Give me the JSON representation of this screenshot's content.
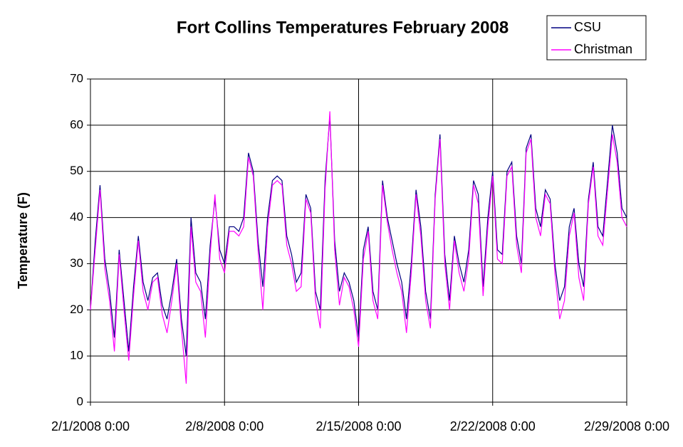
{
  "chart_data": {
    "type": "line",
    "title": "Fort Collins Temperatures February 2008",
    "y_label": "Temperature (F)",
    "x": [
      "2/1/2008 0:00",
      "2/1/2008 6:00",
      "2/1/2008 12:00",
      "2/1/2008 18:00",
      "2/2/2008 0:00",
      "2/2/2008 6:00",
      "2/2/2008 12:00",
      "2/2/2008 18:00",
      "2/3/2008 0:00",
      "2/3/2008 6:00",
      "2/3/2008 12:00",
      "2/3/2008 18:00",
      "2/4/2008 0:00",
      "2/4/2008 6:00",
      "2/4/2008 12:00",
      "2/4/2008 18:00",
      "2/5/2008 0:00",
      "2/5/2008 6:00",
      "2/5/2008 12:00",
      "2/5/2008 18:00",
      "2/6/2008 0:00",
      "2/6/2008 6:00",
      "2/6/2008 12:00",
      "2/6/2008 18:00",
      "2/7/2008 0:00",
      "2/7/2008 6:00",
      "2/7/2008 12:00",
      "2/7/2008 18:00",
      "2/8/2008 0:00",
      "2/8/2008 6:00",
      "2/8/2008 12:00",
      "2/8/2008 18:00",
      "2/9/2008 0:00",
      "2/9/2008 6:00",
      "2/9/2008 12:00",
      "2/9/2008 18:00",
      "2/10/2008 0:00",
      "2/10/2008 6:00",
      "2/10/2008 12:00",
      "2/10/2008 18:00",
      "2/11/2008 0:00",
      "2/11/2008 6:00",
      "2/11/2008 12:00",
      "2/11/2008 18:00",
      "2/12/2008 0:00",
      "2/12/2008 6:00",
      "2/12/2008 12:00",
      "2/12/2008 18:00",
      "2/13/2008 0:00",
      "2/13/2008 6:00",
      "2/13/2008 12:00",
      "2/13/2008 18:00",
      "2/14/2008 0:00",
      "2/14/2008 6:00",
      "2/14/2008 12:00",
      "2/14/2008 18:00",
      "2/15/2008 0:00",
      "2/15/2008 6:00",
      "2/15/2008 12:00",
      "2/15/2008 18:00",
      "2/16/2008 0:00",
      "2/16/2008 6:00",
      "2/16/2008 12:00",
      "2/16/2008 18:00",
      "2/17/2008 0:00",
      "2/17/2008 6:00",
      "2/17/2008 12:00",
      "2/17/2008 18:00",
      "2/18/2008 0:00",
      "2/18/2008 6:00",
      "2/18/2008 12:00",
      "2/18/2008 18:00",
      "2/19/2008 0:00",
      "2/19/2008 6:00",
      "2/19/2008 12:00",
      "2/19/2008 18:00",
      "2/20/2008 0:00",
      "2/20/2008 6:00",
      "2/20/2008 12:00",
      "2/20/2008 18:00",
      "2/21/2008 0:00",
      "2/21/2008 6:00",
      "2/21/2008 12:00",
      "2/21/2008 18:00",
      "2/22/2008 0:00",
      "2/22/2008 6:00",
      "2/22/2008 12:00",
      "2/22/2008 18:00",
      "2/23/2008 0:00",
      "2/23/2008 6:00",
      "2/23/2008 12:00",
      "2/23/2008 18:00",
      "2/24/2008 0:00",
      "2/24/2008 6:00",
      "2/24/2008 12:00",
      "2/24/2008 18:00",
      "2/25/2008 0:00",
      "2/25/2008 6:00",
      "2/25/2008 12:00",
      "2/25/2008 18:00",
      "2/26/2008 0:00",
      "2/26/2008 6:00",
      "2/26/2008 12:00",
      "2/26/2008 18:00",
      "2/27/2008 0:00",
      "2/27/2008 6:00",
      "2/27/2008 12:00",
      "2/27/2008 18:00",
      "2/28/2008 0:00",
      "2/28/2008 6:00",
      "2/28/2008 12:00",
      "2/28/2008 18:00",
      "2/29/2008 0:00"
    ],
    "series": [
      {
        "name": "CSU",
        "color": "#000080",
        "values": [
          20,
          35,
          47,
          31,
          24,
          14,
          33,
          22,
          11,
          25,
          36,
          26,
          22,
          27,
          28,
          21,
          18,
          24,
          31,
          18,
          10,
          40,
          28,
          26,
          18,
          34,
          44,
          33,
          30,
          38,
          38,
          37,
          40,
          54,
          50,
          35,
          25,
          40,
          48,
          49,
          48,
          36,
          32,
          26,
          28,
          45,
          42,
          24,
          20,
          48,
          62,
          35,
          24,
          28,
          26,
          22,
          14,
          33,
          38,
          24,
          20,
          48,
          40,
          35,
          30,
          26,
          18,
          30,
          46,
          38,
          24,
          18,
          45,
          58,
          32,
          22,
          36,
          30,
          26,
          33,
          48,
          45,
          25,
          40,
          50,
          33,
          32,
          50,
          52,
          36,
          30,
          55,
          58,
          42,
          38,
          46,
          44,
          30,
          22,
          25,
          38,
          42,
          30,
          25,
          44,
          52,
          38,
          36,
          48,
          60,
          54,
          42,
          40
        ]
      },
      {
        "name": "Christman",
        "color": "#ff00ff",
        "values": [
          20,
          33,
          46,
          29,
          22,
          11,
          32,
          20,
          9,
          23,
          35,
          24,
          20,
          26,
          27,
          19,
          15,
          22,
          30,
          16,
          4,
          38,
          26,
          24,
          14,
          32,
          45,
          31,
          28,
          37,
          37,
          36,
          38,
          53,
          49,
          33,
          20,
          38,
          47,
          48,
          47,
          34,
          30,
          24,
          25,
          44,
          41,
          22,
          16,
          46,
          63,
          33,
          21,
          27,
          25,
          20,
          12,
          31,
          37,
          22,
          18,
          47,
          39,
          33,
          28,
          24,
          15,
          28,
          45,
          36,
          22,
          16,
          44,
          57,
          30,
          20,
          35,
          28,
          24,
          31,
          47,
          43,
          23,
          38,
          49,
          31,
          30,
          49,
          51,
          34,
          28,
          54,
          57,
          40,
          36,
          45,
          43,
          28,
          18,
          22,
          36,
          41,
          27,
          22,
          43,
          51,
          36,
          34,
          46,
          58,
          52,
          40,
          38
        ]
      }
    ],
    "ylim": [
      0,
      70
    ],
    "yticks": [
      0,
      10,
      20,
      30,
      40,
      50,
      60,
      70
    ],
    "xticks": [
      "2/1/2008 0:00",
      "2/8/2008 0:00",
      "2/15/2008 0:00",
      "2/22/2008 0:00",
      "2/29/2008 0:00"
    ],
    "grid": true,
    "legend": "top-right"
  }
}
